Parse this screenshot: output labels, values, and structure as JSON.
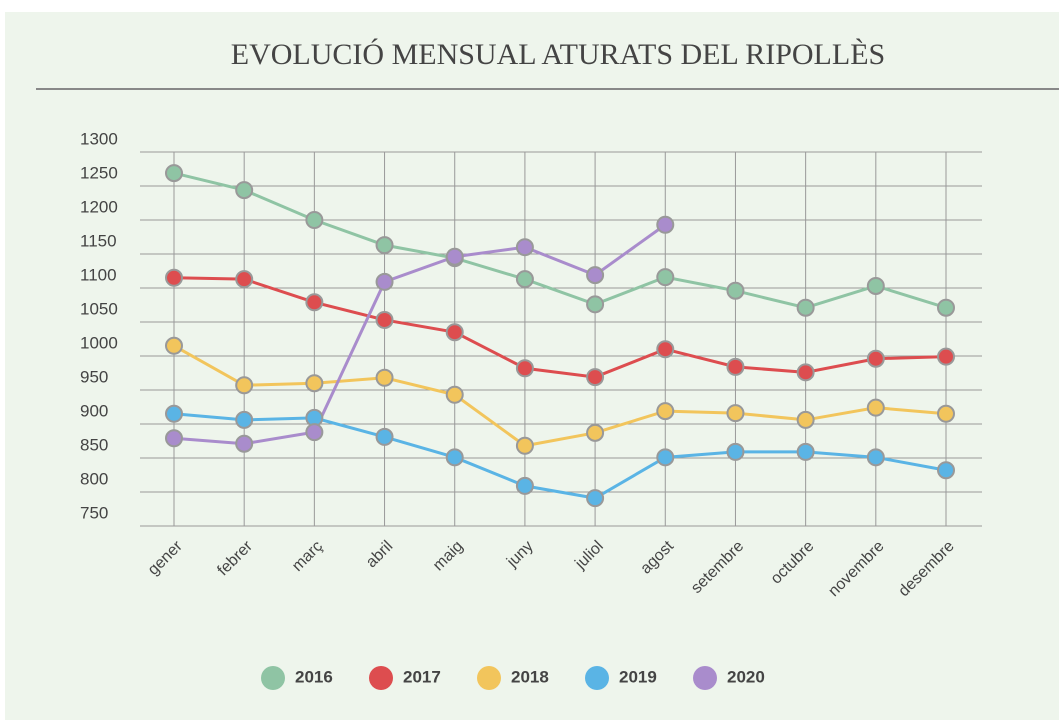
{
  "chart_data": {
    "type": "line",
    "title": "EVOLUCIÓ MENSUAL ATURATS DEL RIPOLLÈS",
    "categories": [
      "gener",
      "febrer",
      "març",
      "abril",
      "maig",
      "juny",
      "juliol",
      "agost",
      "setembre",
      "octubre",
      "novembre",
      "desembre"
    ],
    "series": [
      {
        "name": "2016",
        "color": "#8fc4a4",
        "values": [
          1269,
          1244,
          1200,
          1163,
          1144,
          1113,
          1076,
          1116,
          1096,
          1071,
          1103,
          1071
        ]
      },
      {
        "name": "2017",
        "color": "#dd4d4f",
        "values": [
          1115,
          1113,
          1079,
          1053,
          1035,
          982,
          969,
          1010,
          984,
          976,
          996,
          999
        ]
      },
      {
        "name": "2018",
        "color": "#f2c55c",
        "values": [
          1015,
          957,
          960,
          968,
          943,
          868,
          887,
          919,
          916,
          906,
          924,
          915
        ]
      },
      {
        "name": "2019",
        "color": "#5ab4e5",
        "values": [
          915,
          906,
          909,
          881,
          851,
          809,
          791,
          851,
          859,
          859,
          851,
          832
        ]
      },
      {
        "name": "2020",
        "color": "#a98ccc",
        "values": [
          879,
          871,
          888,
          1109,
          1146,
          1160,
          1119,
          1193,
          null,
          null,
          null,
          null
        ]
      }
    ],
    "ylim": [
      750,
      1300
    ],
    "yticks": [
      750,
      800,
      850,
      900,
      950,
      1000,
      1050,
      1100,
      1150,
      1200,
      1250,
      1300
    ],
    "grid": true
  }
}
